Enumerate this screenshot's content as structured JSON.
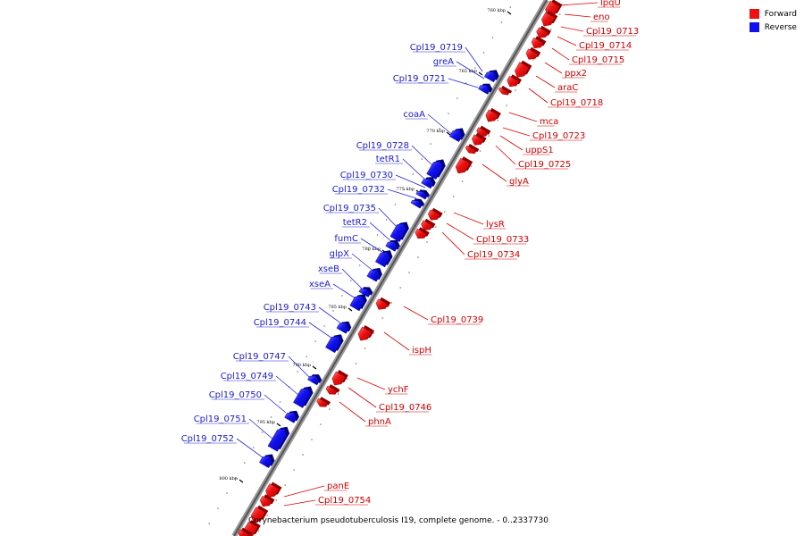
{
  "legend": {
    "forward_label": "Forward",
    "reverse_label": "Reverse",
    "forward_color": "#ee1111",
    "reverse_color": "#1111ee"
  },
  "footer": {
    "caption": "Corynebacterium pseudotuberculosis I19, complete genome. - 0..2337730"
  },
  "scale": {
    "ticks": [
      "760 kbp",
      "765 kbp",
      "770 kbp",
      "775 kbp",
      "780 kbp",
      "785 kbp",
      "790 kbp",
      "795 kbp",
      "800 kbp"
    ]
  },
  "genes": {
    "forward": [
      "lpqU",
      "eno",
      "Cpl19_0713",
      "Cpl19_0714",
      "Cpl19_0715",
      "ppx2",
      "araC",
      "Cpl19_0718",
      "mca",
      "Cpl19_0723",
      "uppS1",
      "Cpl19_0725",
      "glyA",
      "lysR",
      "Cpl19_0733",
      "Cpl19_0734",
      "Cpl19_0739",
      "ispH",
      "ychF",
      "Cpl19_0746",
      "phnA",
      "panE",
      "Cpl19_0754"
    ],
    "reverse": [
      "Cpl19_0719",
      "greA",
      "Cpl19_0721",
      "coaA",
      "Cpl19_0728",
      "tetR1",
      "Cpl19_0730",
      "Cpl19_0732",
      "Cpl19_0735",
      "tetR2",
      "fumC",
      "glpX",
      "xseB",
      "xseA",
      "Cpl19_0743",
      "Cpl19_0744",
      "Cpl19_0747",
      "Cpl19_0749",
      "Cpl19_0750",
      "Cpl19_0751",
      "Cpl19_0752"
    ]
  }
}
